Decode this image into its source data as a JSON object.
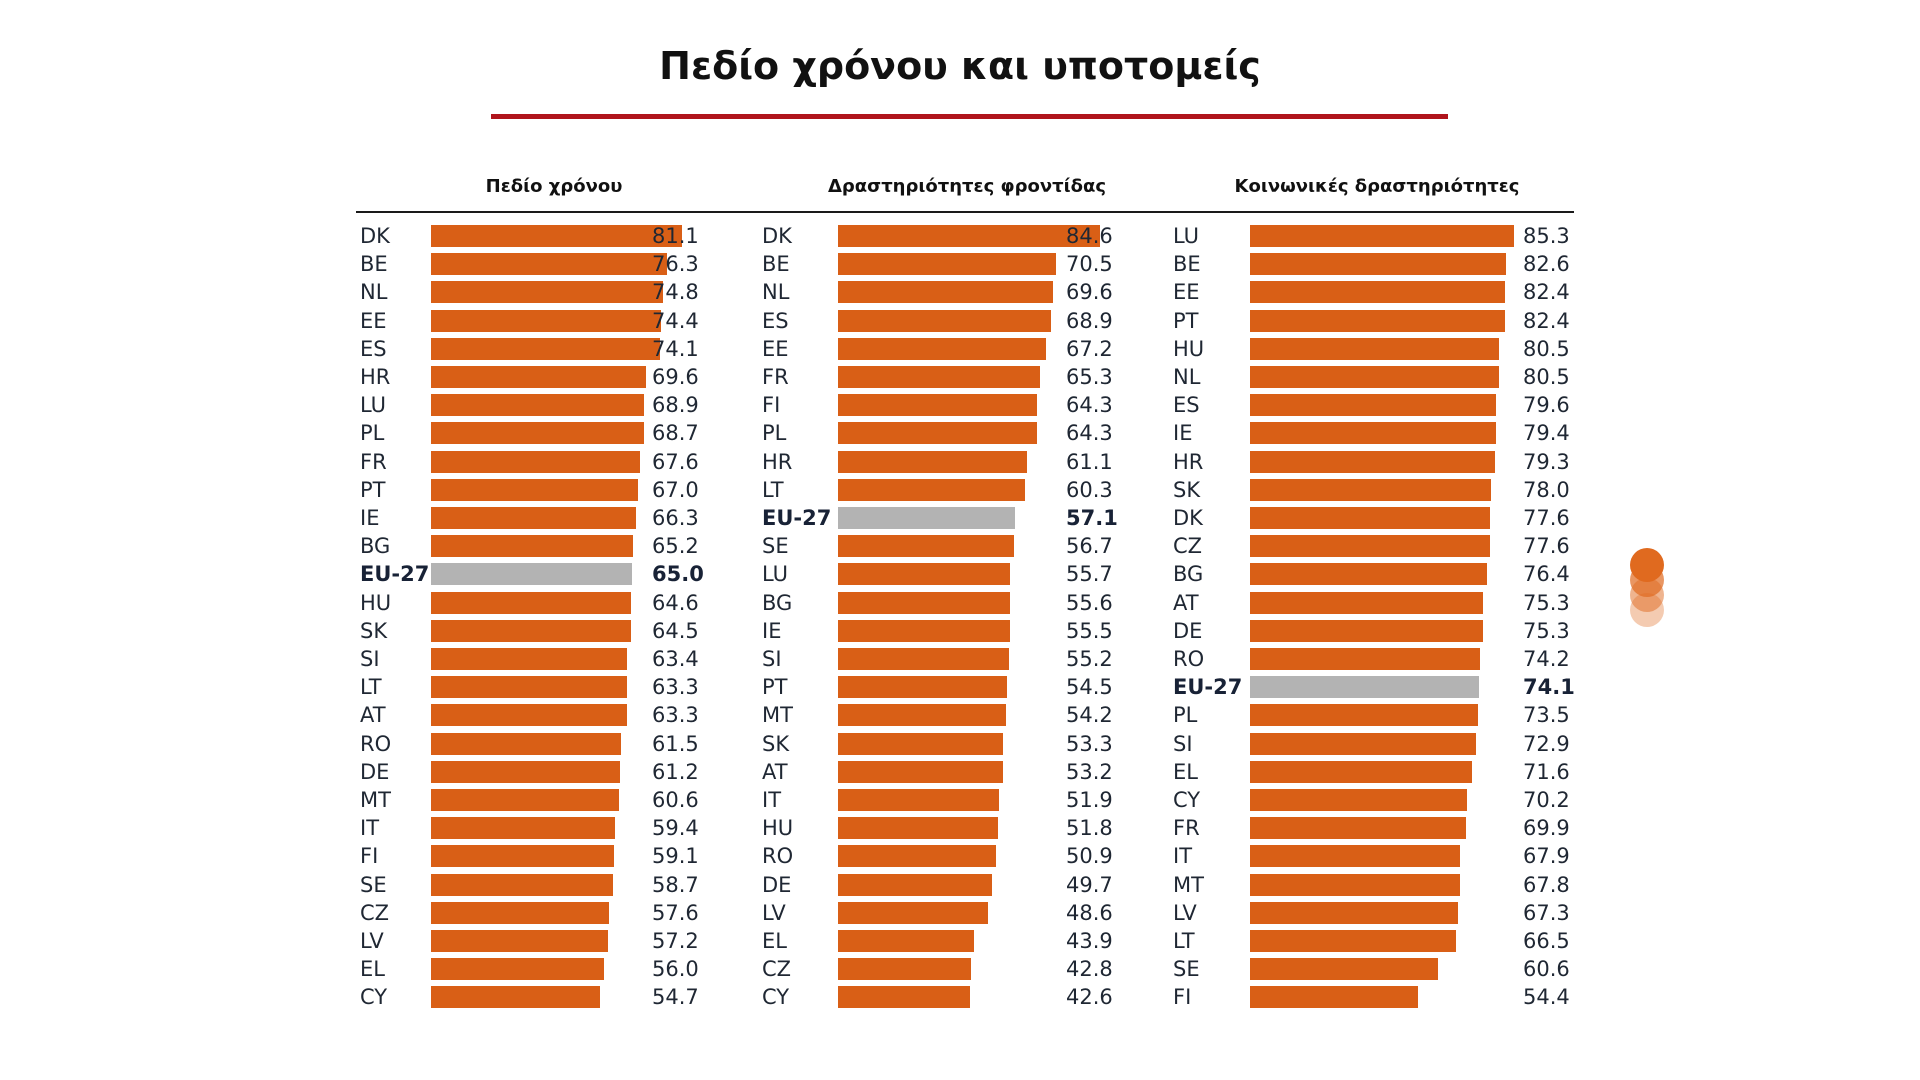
{
  "title": "Πεδίο χρόνου και υποτομείς",
  "colors": {
    "bar": "#d95f16",
    "average_bar": "#b3b3b3",
    "rule": "#b0141c",
    "decoration": "#e06a1f"
  },
  "chart_data": [
    {
      "type": "bar",
      "orientation": "horizontal",
      "title": "Πεδίο χρόνου",
      "xlim": [
        0,
        85.3
      ],
      "categories": [
        "DK",
        "BE",
        "NL",
        "EE",
        "ES",
        "HR",
        "LU",
        "PL",
        "FR",
        "PT",
        "IE",
        "BG",
        "EU-27",
        "HU",
        "SK",
        "SI",
        "LT",
        "AT",
        "RO",
        "DE",
        "MT",
        "IT",
        "FI",
        "SE",
        "CZ",
        "LV",
        "EL",
        "CY"
      ],
      "values": [
        "81.1",
        "76.3",
        "74.8",
        "74.4",
        "74.1",
        "69.6",
        "68.9",
        "68.7",
        "67.6",
        "67.0",
        "66.3",
        "65.2",
        "65.0",
        "64.6",
        "64.5",
        "63.4",
        "63.3",
        "63.3",
        "61.5",
        "61.2",
        "60.6",
        "59.4",
        "59.1",
        "58.7",
        "57.6",
        "57.2",
        "56.0",
        "54.7"
      ],
      "highlight": "EU-27"
    },
    {
      "type": "bar",
      "orientation": "horizontal",
      "title": "Δραστηριότητες φροντίδας",
      "xlim": [
        0,
        85.3
      ],
      "categories": [
        "DK",
        "BE",
        "NL",
        "ES",
        "EE",
        "FR",
        "FI",
        "PL",
        "HR",
        "LT",
        "EU-27",
        "SE",
        "LU",
        "BG",
        "IE",
        "SI",
        "PT",
        "MT",
        "SK",
        "AT",
        "IT",
        "HU",
        "RO",
        "DE",
        "LV",
        "EL",
        "CZ",
        "CY"
      ],
      "values": [
        "84.6",
        "70.5",
        "69.6",
        "68.9",
        "67.2",
        "65.3",
        "64.3",
        "64.3",
        "61.1",
        "60.3",
        "57.1",
        "56.7",
        "55.7",
        "55.6",
        "55.5",
        "55.2",
        "54.5",
        "54.2",
        "53.3",
        "53.2",
        "51.9",
        "51.8",
        "50.9",
        "49.7",
        "48.6",
        "43.9",
        "42.8",
        "42.6"
      ],
      "highlight": "EU-27"
    },
    {
      "type": "bar",
      "orientation": "horizontal",
      "title": "Κοινωνικές δραστηριότητες",
      "xlim": [
        0,
        85.3
      ],
      "categories": [
        "LU",
        "BE",
        "EE",
        "PT",
        "HU",
        "NL",
        "ES",
        "IE",
        "HR",
        "SK",
        "DK",
        "CZ",
        "BG",
        "AT",
        "DE",
        "RO",
        "EU-27",
        "PL",
        "SI",
        "EL",
        "CY",
        "FR",
        "IT",
        "MT",
        "LV",
        "LT",
        "SE",
        "FI"
      ],
      "values": [
        "85.3",
        "82.6",
        "82.4",
        "82.4",
        "80.5",
        "80.5",
        "79.6",
        "79.4",
        "79.3",
        "78.0",
        "77.6",
        "77.6",
        "76.4",
        "75.3",
        "75.3",
        "74.2",
        "74.1",
        "73.5",
        "72.9",
        "71.6",
        "70.2",
        "69.9",
        "67.9",
        "67.8",
        "67.3",
        "66.5",
        "60.6",
        "54.4"
      ],
      "highlight": "EU-27"
    }
  ]
}
